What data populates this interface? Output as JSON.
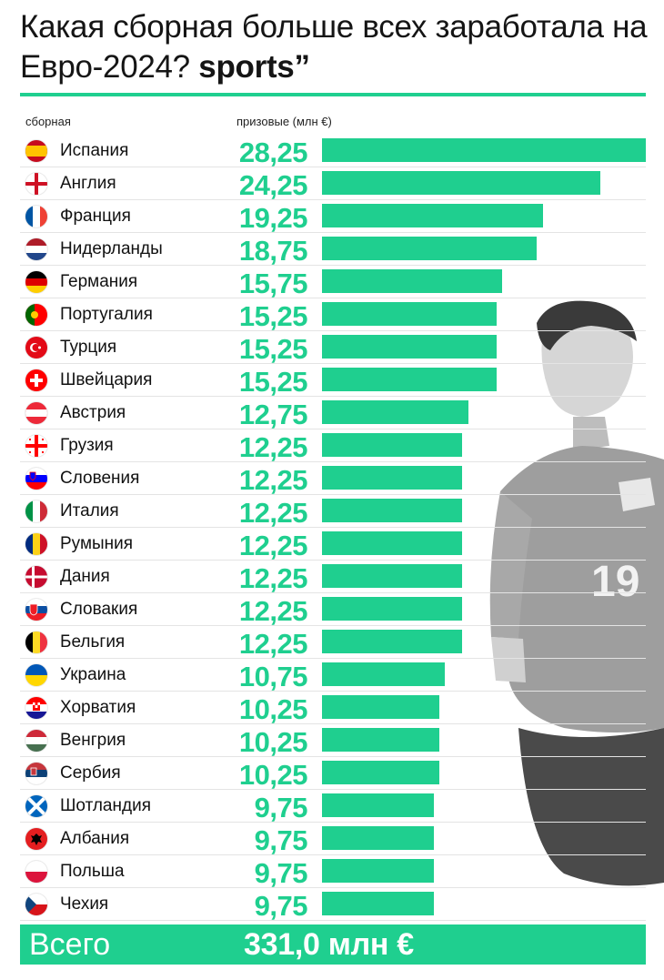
{
  "title": "Какая сборная больше всех заработала на Евро-2024?",
  "brand": "sports”",
  "header": {
    "team_col": "сборная",
    "prize_col": "призовые (млн €)"
  },
  "colors": {
    "accent": "#1fcf8f",
    "text": "#111111"
  },
  "chart_data": {
    "type": "bar",
    "orientation": "horizontal",
    "categories": [
      "Испания",
      "Англия",
      "Франция",
      "Нидерланды",
      "Германия",
      "Португалия",
      "Турция",
      "Швейцария",
      "Австрия",
      "Грузия",
      "Словения",
      "Италия",
      "Румыния",
      "Дания",
      "Словакия",
      "Бельгия",
      "Украина",
      "Хорватия",
      "Венгрия",
      "Сербия",
      "Шотландия",
      "Албания",
      "Польша",
      "Чехия"
    ],
    "labels": [
      "28,25",
      "24,25",
      "19,25",
      "18,75",
      "15,75",
      "15,25",
      "15,25",
      "15,25",
      "12,75",
      "12,25",
      "12,25",
      "12,25",
      "12,25",
      "12,25",
      "12,25",
      "12,25",
      "10,75",
      "10,25",
      "10,25",
      "10,25",
      "9,75",
      "9,75",
      "9,75",
      "9,75"
    ],
    "values": [
      28.25,
      24.25,
      19.25,
      18.75,
      15.75,
      15.25,
      15.25,
      15.25,
      12.75,
      12.25,
      12.25,
      12.25,
      12.25,
      12.25,
      12.25,
      12.25,
      10.75,
      10.25,
      10.25,
      10.25,
      9.75,
      9.75,
      9.75,
      9.75
    ],
    "flags": [
      "spain-flag-icon",
      "england-flag-icon",
      "france-flag-icon",
      "netherlands-flag-icon",
      "germany-flag-icon",
      "portugal-flag-icon",
      "turkey-flag-icon",
      "switzerland-flag-icon",
      "austria-flag-icon",
      "georgia-flag-icon",
      "slovenia-flag-icon",
      "italy-flag-icon",
      "romania-flag-icon",
      "denmark-flag-icon",
      "slovakia-flag-icon",
      "belgium-flag-icon",
      "ukraine-flag-icon",
      "croatia-flag-icon",
      "hungary-flag-icon",
      "serbia-flag-icon",
      "scotland-flag-icon",
      "albania-flag-icon",
      "poland-flag-icon",
      "czechia-flag-icon"
    ],
    "xlim": [
      0,
      28.25
    ]
  },
  "total": {
    "label": "Всего",
    "value": "331,0 млн €"
  },
  "photo": {
    "jersey_number": "19"
  }
}
